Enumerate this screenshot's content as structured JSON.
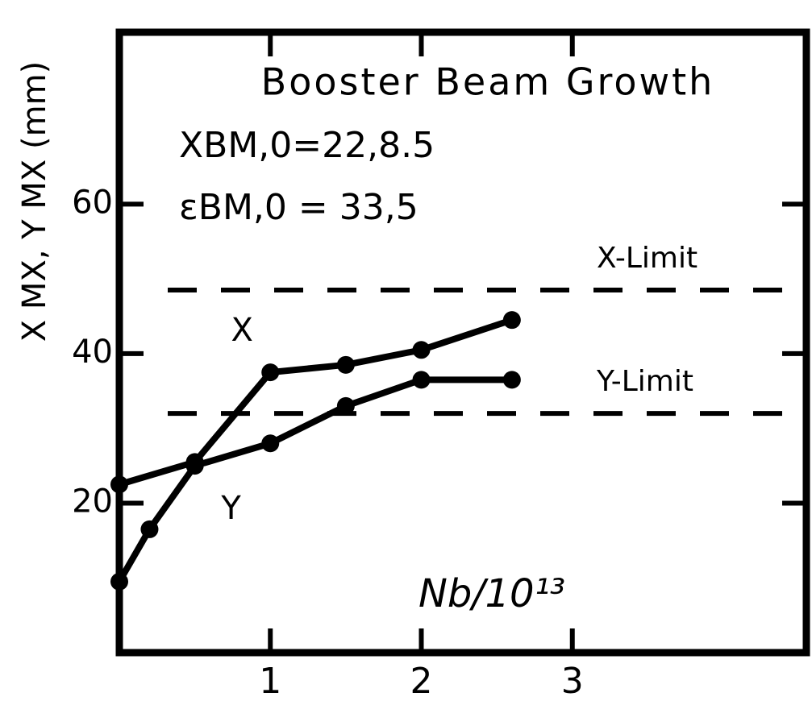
{
  "chart_data": {
    "type": "line",
    "title": "Booster Beam Growth",
    "annotations": [
      "XBM,0=22,8.5",
      "εBM,0 = 33,5"
    ],
    "y_label": "X MX, Y MX (mm)",
    "x_label": "Nb/10¹³",
    "xlim": [
      0,
      4.55
    ],
    "xticks": [
      1,
      2,
      3
    ],
    "ylim": [
      0,
      83
    ],
    "yticks": [
      20,
      40,
      60
    ],
    "series": [
      {
        "name": "X",
        "color": "#000000",
        "x": [
          0,
          0.5,
          1,
          1.5,
          2,
          2.6
        ],
        "values": [
          22.5,
          25.5,
          37.5,
          38.5,
          40.5,
          44.5
        ]
      },
      {
        "name": "Y",
        "color": "#000000",
        "x": [
          0,
          0.2,
          0.5,
          1,
          1.5,
          2,
          2.6
        ],
        "values": [
          9.5,
          16.5,
          25,
          28,
          33,
          36.5,
          36.5
        ]
      }
    ],
    "reference_lines": [
      {
        "label": "X-Limit",
        "value": 48.5
      },
      {
        "label": "Y-Limit",
        "value": 32
      }
    ]
  }
}
